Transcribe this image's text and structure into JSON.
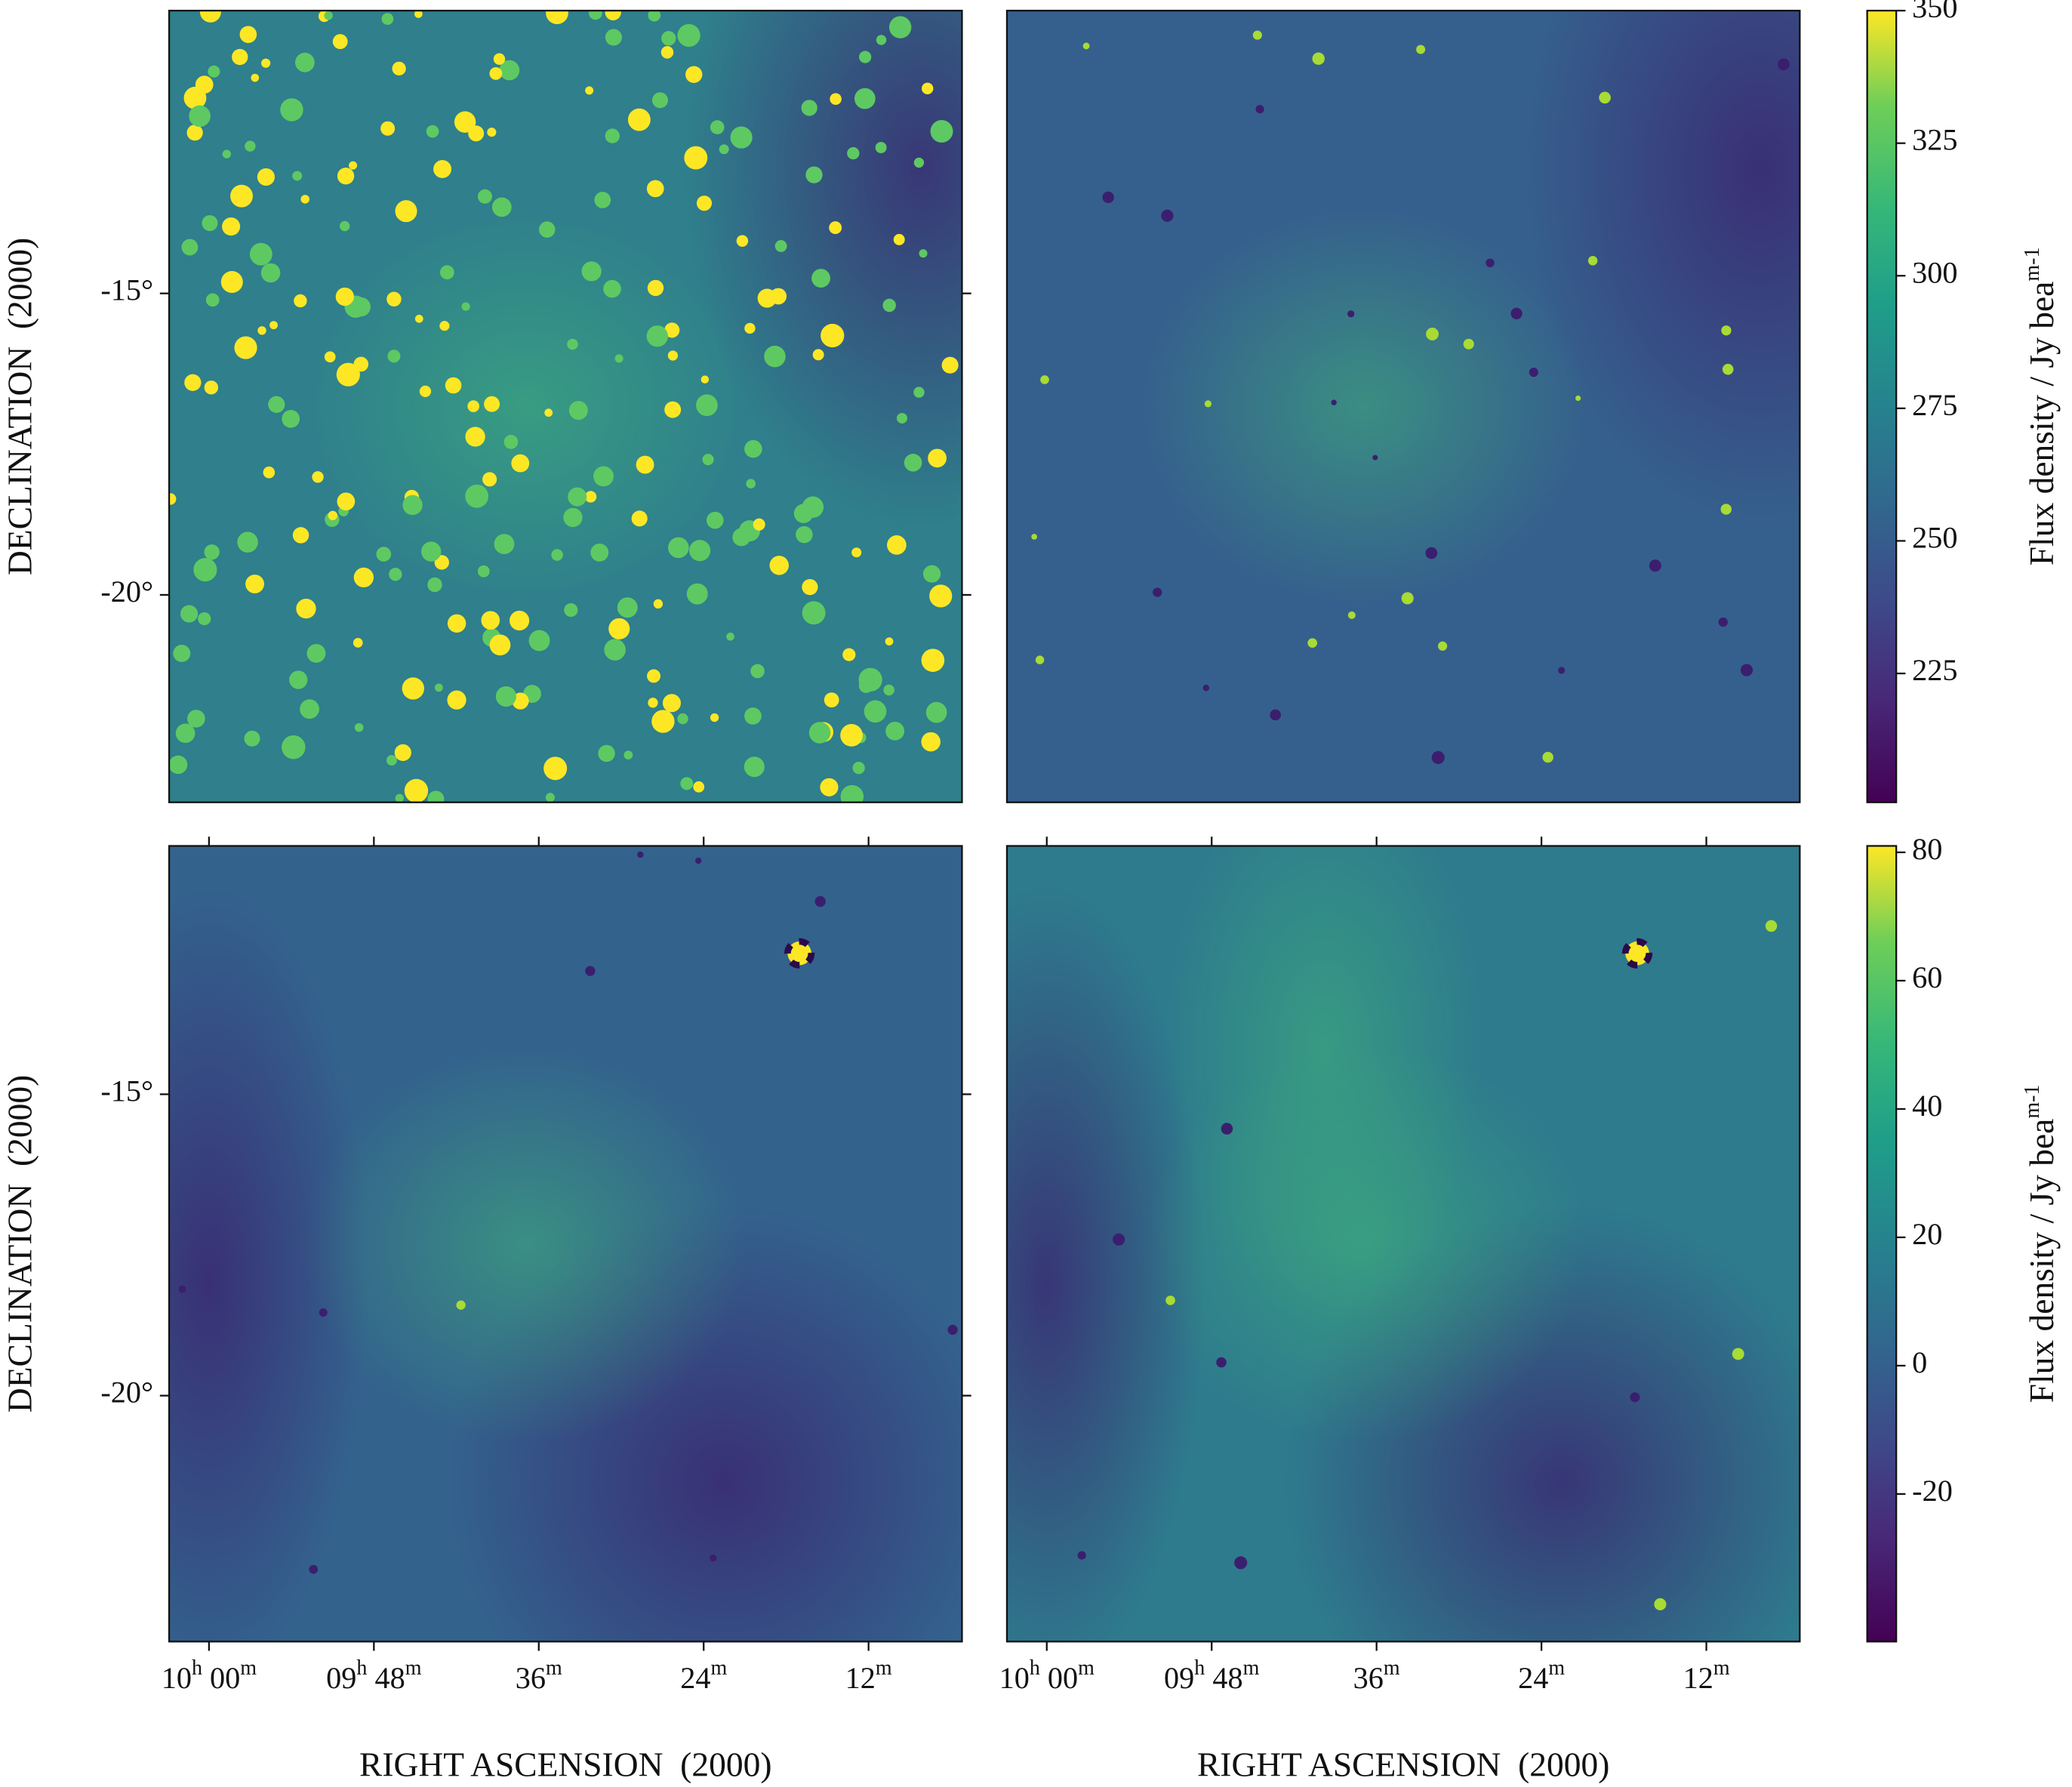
{
  "chart_data": [
    {
      "type": "image",
      "colorbar": 4,
      "xlim": [
        602.9,
        545.2
      ],
      "ylim": [
        -23.44,
        -10.31
      ],
      "yticks": [
        {
          "value": -15,
          "label": "-15°"
        },
        {
          "value": -20,
          "label": "-20°"
        }
      ],
      "ylabel": "DECLINATION  (2000)"
    },
    {
      "type": "image",
      "colorbar": 4,
      "xlim": [
        602.9,
        545.2
      ],
      "ylim": [
        -23.44,
        -10.31
      ]
    },
    {
      "type": "image",
      "colorbar": 5,
      "xlim": [
        602.9,
        545.2
      ],
      "ylim": [
        -24.08,
        -10.88
      ],
      "yticks": [
        {
          "value": -15,
          "label": "-15°"
        },
        {
          "value": -20,
          "label": "-20°"
        }
      ],
      "xticks": [
        {
          "value": 600,
          "label": "10h 00m"
        },
        {
          "value": 588,
          "label": "09h 48m"
        },
        {
          "value": 576,
          "label": "36m"
        },
        {
          "value": 564,
          "label": "24m"
        },
        {
          "value": 552,
          "label": "12m"
        }
      ],
      "ylabel": "DECLINATION  (2000)",
      "xlabel": "RIGHT ASCENSION  (2000)"
    },
    {
      "type": "image",
      "colorbar": 5,
      "xlim": [
        602.9,
        545.2
      ],
      "ylim": [
        -24.08,
        -10.88
      ],
      "xticks": [
        {
          "value": 600,
          "label": "10h 00m"
        },
        {
          "value": 588,
          "label": "09h 48m"
        },
        {
          "value": 576,
          "label": "36m"
        },
        {
          "value": 564,
          "label": "24m"
        },
        {
          "value": 552,
          "label": "12m"
        }
      ],
      "xlabel": "RIGHT ASCENSION  (2000)"
    },
    {
      "type": "colorbar",
      "colormap": "viridis",
      "ylim": [
        200.7,
        350
      ],
      "yticks": [
        225,
        250,
        275,
        300,
        325,
        350
      ],
      "label": "Flux density / Jy beam-1"
    },
    {
      "type": "colorbar",
      "colormap": "viridis",
      "ylim": [
        -43,
        81
      ],
      "yticks": [
        -20,
        0,
        20,
        40,
        60,
        80
      ],
      "label": "Flux density / Jy beam-1"
    }
  ]
}
